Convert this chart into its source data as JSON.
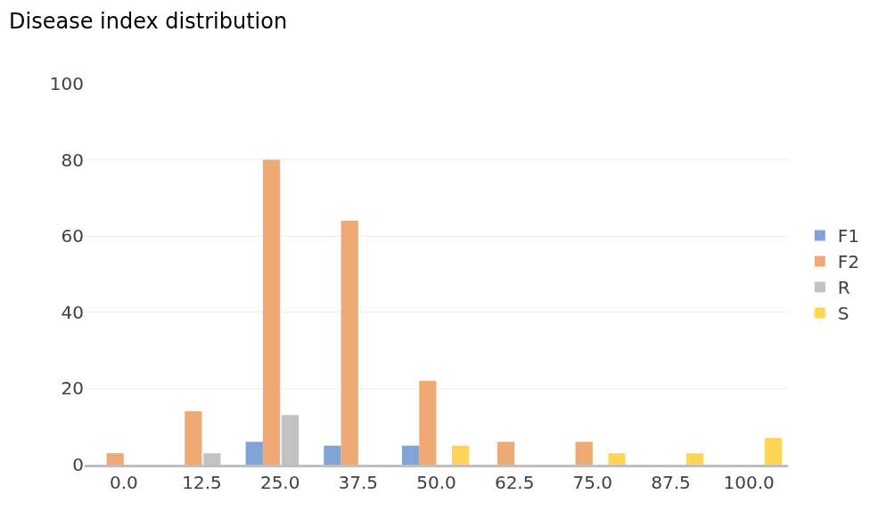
{
  "chart_data": {
    "type": "bar",
    "title": "Disease index distribution",
    "categories": [
      "0.0",
      "12.5",
      "25.0",
      "37.5",
      "50.0",
      "62.5",
      "75.0",
      "87.5",
      "100.0"
    ],
    "series": [
      {
        "name": "F1",
        "color": "#7a9fd6",
        "values": [
          0,
          0,
          6,
          5,
          5,
          0,
          0,
          0,
          0
        ]
      },
      {
        "name": "F2",
        "color": "#f0a56e",
        "values": [
          3,
          14,
          80,
          64,
          22,
          6,
          6,
          0,
          0
        ]
      },
      {
        "name": "R",
        "color": "#bfbfbf",
        "values": [
          0,
          3,
          13,
          0,
          0,
          0,
          0,
          0,
          0
        ]
      },
      {
        "name": "S",
        "color": "#ffd34f",
        "values": [
          0,
          0,
          0,
          0,
          5,
          0,
          3,
          3,
          7
        ]
      }
    ],
    "ylim": [
      0,
      100
    ],
    "yticks": [
      0,
      20,
      40,
      60,
      80,
      100
    ],
    "grid": "y",
    "legend": "right"
  }
}
